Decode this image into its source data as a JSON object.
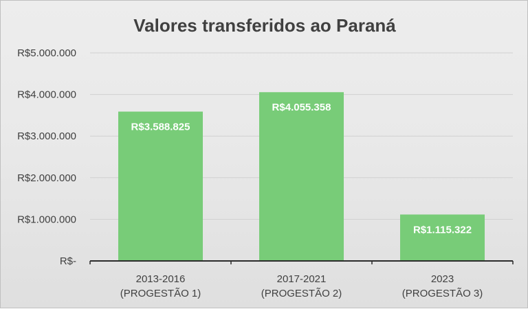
{
  "chart_data": {
    "type": "bar",
    "title": "Valores transferidos ao Paraná",
    "categories": [
      [
        "2013-2016",
        "(PROGESTÃO 1)"
      ],
      [
        "2017-2021",
        "(PROGESTÃO 2)"
      ],
      [
        "2023",
        "(PROGESTÃO 3)"
      ]
    ],
    "values": [
      3588825,
      4055358,
      1115322
    ],
    "data_labels": [
      "R$3.588.825",
      "R$4.055.358",
      "R$1.115.322"
    ],
    "y_ticks": [
      0,
      1000000,
      2000000,
      3000000,
      4000000,
      5000000
    ],
    "y_tick_labels": [
      "R$-",
      "R$1.000.000",
      "R$2.000.000",
      "R$3.000.000",
      "R$4.000.000",
      "R$5.000.000"
    ],
    "ylim": [
      0,
      5000000
    ],
    "grid": true,
    "legend": "none",
    "colors": {
      "bar": "#78cc78",
      "grid": "#d0d0d0",
      "axis": "#2b2b2b",
      "text": "#404040",
      "label": "#ffffff"
    }
  }
}
